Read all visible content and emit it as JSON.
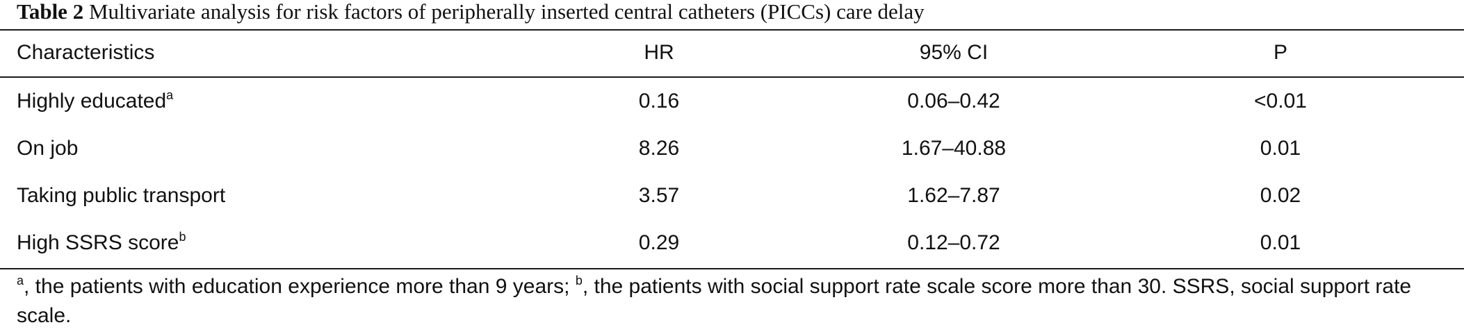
{
  "caption": {
    "label": "Table 2",
    "text": "Multivariate analysis for risk factors of peripherally inserted central catheters (PICCs) care delay"
  },
  "table": {
    "headers": [
      "Characteristics",
      "HR",
      "95% CI",
      "P"
    ],
    "rows": [
      {
        "name": "Highly educated",
        "sup": "a",
        "hr": "0.16",
        "ci": "0.06–0.42",
        "p": "<0.01"
      },
      {
        "name": "On job",
        "sup": "",
        "hr": "8.26",
        "ci": "1.67–40.88",
        "p": "0.01"
      },
      {
        "name": "Taking public transport",
        "sup": "",
        "hr": "3.57",
        "ci": "1.62–7.87",
        "p": "0.02"
      },
      {
        "name": "High SSRS score",
        "sup": "b",
        "hr": "0.29",
        "ci": "0.12–0.72",
        "p": "0.01"
      }
    ]
  },
  "footnote": {
    "sup_a": "a",
    "text_a": ", the patients with education experience more than 9 years; ",
    "sup_b": "b",
    "text_b": ", the patients with social support rate scale score more than 30. SSRS, social support rate scale."
  }
}
